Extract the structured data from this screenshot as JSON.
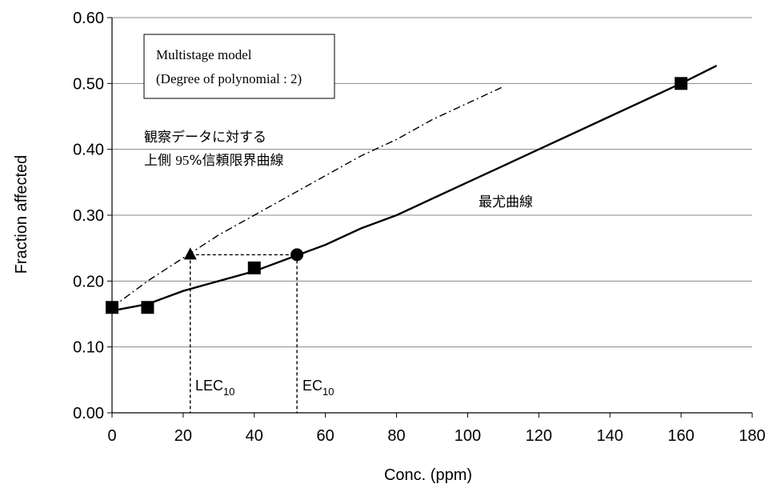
{
  "chart_data": {
    "type": "line",
    "xlabel": "Conc. (ppm)",
    "ylabel": "Fraction affected",
    "xlim": [
      0,
      180
    ],
    "ylim": [
      0,
      0.6
    ],
    "x_ticks": [
      "0",
      "20",
      "40",
      "60",
      "80",
      "100",
      "120",
      "140",
      "160",
      "180"
    ],
    "y_ticks": [
      "0.00",
      "0.10",
      "0.20",
      "0.30",
      "0.40",
      "0.50",
      "0.60"
    ],
    "grid": "horizontal",
    "legend_box": {
      "line1": "Multistage model",
      "line2": "(Degree of polynomial : 2)"
    },
    "annotations": {
      "upper_label_line1": "観察データに対する",
      "upper_label_line2_prefix": "上側 ",
      "upper_label_line2_num": "95",
      "upper_label_line2_suffix": "%信頼限界曲線",
      "mle_label": "最尤曲線",
      "lec_main": "LEC",
      "lec_sub": "10",
      "ec_main": "EC",
      "ec_sub": "10"
    },
    "series": [
      {
        "style": "solid",
        "x": [
          0,
          10,
          20,
          30,
          40,
          50,
          60,
          70,
          80,
          90,
          100,
          110,
          120,
          130,
          140,
          150,
          160,
          170
        ],
        "y": [
          0.155,
          0.165,
          0.185,
          0.2,
          0.215,
          0.235,
          0.255,
          0.28,
          0.3,
          0.325,
          0.35,
          0.375,
          0.4,
          0.425,
          0.45,
          0.475,
          0.5,
          0.527
        ]
      },
      {
        "style": "dash-dot",
        "x": [
          0,
          10,
          20,
          30,
          40,
          50,
          60,
          70,
          80,
          90,
          100,
          110
        ],
        "y": [
          0.16,
          0.2,
          0.235,
          0.27,
          0.3,
          0.33,
          0.36,
          0.39,
          0.415,
          0.445,
          0.47,
          0.495
        ]
      }
    ],
    "observed_points": {
      "marker": "square",
      "x": [
        0,
        10,
        40,
        160
      ],
      "y": [
        0.16,
        0.16,
        0.22,
        0.5
      ]
    },
    "lec10_point": {
      "marker": "triangle",
      "x": 22,
      "y": 0.24
    },
    "ec10_point": {
      "marker": "circle",
      "x": 52,
      "y": 0.24
    }
  }
}
